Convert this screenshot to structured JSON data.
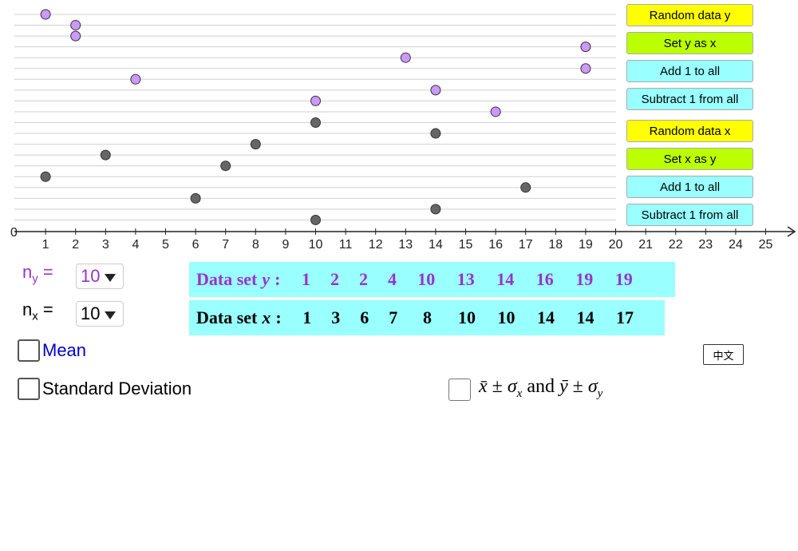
{
  "plot": {
    "y_points": [
      1,
      2,
      2,
      19,
      13,
      19,
      4,
      14,
      10,
      16
    ],
    "x_points": [
      10,
      14,
      8,
      3,
      7,
      1,
      17,
      6,
      14,
      10
    ],
    "y_color": "#cc99ff",
    "x_color": "#666666",
    "ticks": [
      0,
      1,
      2,
      3,
      4,
      5,
      6,
      7,
      8,
      9,
      10,
      11,
      12,
      13,
      14,
      15,
      16,
      17,
      18,
      19,
      20,
      21,
      22,
      23,
      24,
      25
    ]
  },
  "buttons": [
    {
      "label": "Random data y",
      "color": "#ffff00"
    },
    {
      "label": "Set y as x",
      "color": "#bbff00"
    },
    {
      "label": "Add 1 to all",
      "color": "#99ffff"
    },
    {
      "label": "Subtract 1 from all",
      "color": "#99ffff"
    },
    {
      "label": "Random data x",
      "color": "#ffff00"
    },
    {
      "label": "Set x as y",
      "color": "#bbff00"
    },
    {
      "label": "Add 1 to all",
      "color": "#99ffff"
    },
    {
      "label": "Subtract 1 from all",
      "color": "#99ffff"
    }
  ],
  "controls": {
    "n_y": {
      "base": "n",
      "sub": "y",
      "eq": "=",
      "value": 10,
      "color": "#9933cc"
    },
    "n_x": {
      "base": "n",
      "sub": "x",
      "eq": "=",
      "value": 10,
      "color": "#000000"
    }
  },
  "data_sets": [
    {
      "prefix": "Data set",
      "var": "y",
      "colon": ":",
      "values": [
        1,
        2,
        2,
        4,
        10,
        13,
        14,
        16,
        19,
        19
      ],
      "color": "#9933cc"
    },
    {
      "prefix": "Data set",
      "var": "x",
      "colon": ":",
      "values": [
        1,
        3,
        6,
        7,
        8,
        10,
        10,
        14,
        14,
        17
      ],
      "color": "#000000"
    }
  ],
  "checkboxes": {
    "mean": "Mean",
    "std": "Standard Deviation",
    "pair": [
      "x̄",
      "±",
      "σ",
      "x",
      "and",
      "ȳ",
      "±",
      "σ",
      "y"
    ]
  },
  "language_button": "中文"
}
